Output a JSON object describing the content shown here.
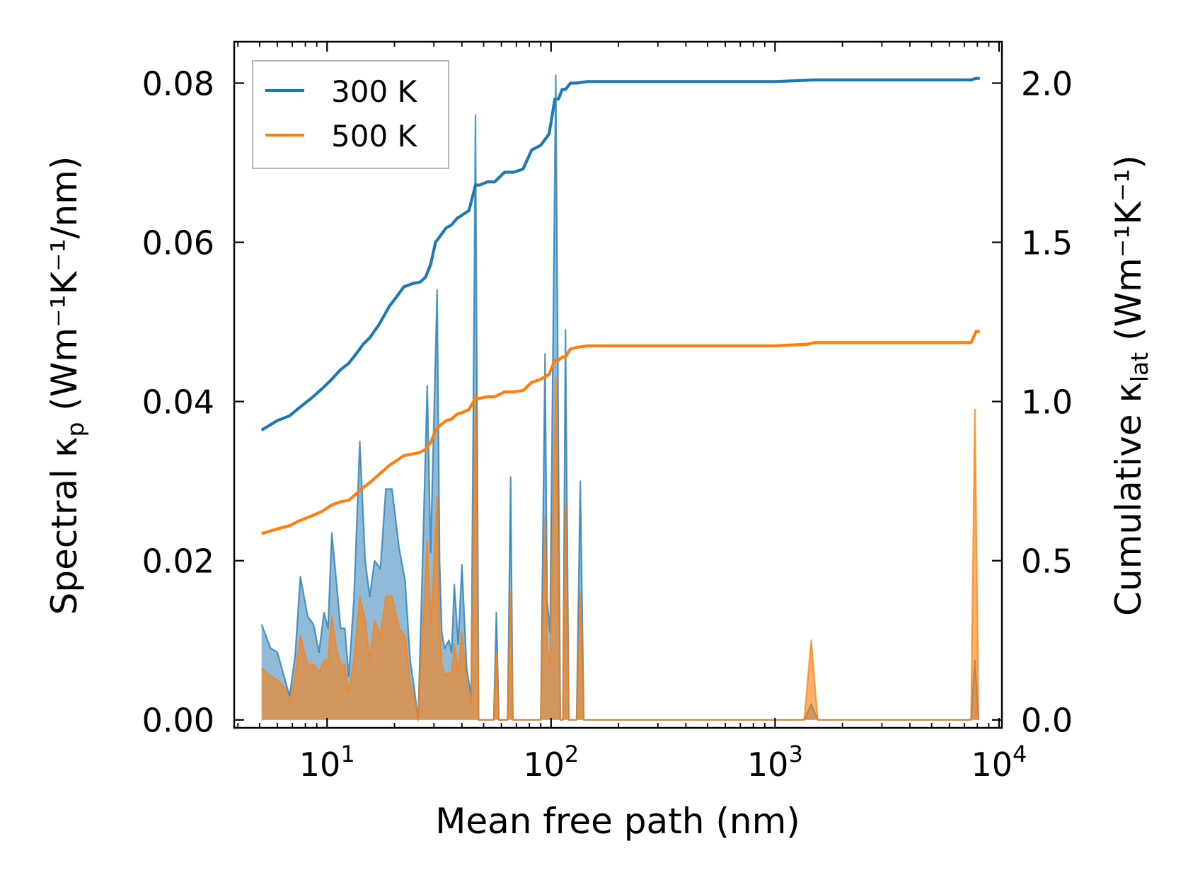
{
  "chart_data": {
    "type": "line",
    "x_scale": "log",
    "xlabel": "Mean free path (nm)",
    "xlim": [
      3.85,
      10300
    ],
    "x_tick_labels": [
      {
        "value": 10,
        "base": "10",
        "exp": "1"
      },
      {
        "value": 100,
        "base": "10",
        "exp": "2"
      },
      {
        "value": 1000,
        "base": "10",
        "exp": "3"
      },
      {
        "value": 10000,
        "base": "10",
        "exp": "4"
      }
    ],
    "left_axis": {
      "label_main": "Spectral κ",
      "label_sub": "p",
      "label_units": " (Wm⁻¹K⁻¹/nm)",
      "ylim": [
        -0.001,
        0.0852
      ],
      "ticks": [
        0.0,
        0.02,
        0.04,
        0.06,
        0.08
      ],
      "tick_labels": [
        "0.00",
        "0.02",
        "0.04",
        "0.06",
        "0.08"
      ]
    },
    "right_axis": {
      "label_main": "Cumulative κ",
      "label_sub": "lat",
      "label_units": " (Wm⁻¹K⁻¹)",
      "ylim": [
        -0.025,
        2.13
      ],
      "ticks": [
        0.0,
        0.5,
        1.0,
        1.5,
        2.0
      ],
      "tick_labels": [
        "0.0",
        "0.5",
        "1.0",
        "1.5",
        "2.0"
      ]
    },
    "legend": {
      "position": "top-left",
      "entries": [
        "300 K",
        "500 K"
      ]
    },
    "colors": {
      "300 K": "#1f77b4",
      "500 K": "#ff7f0e"
    },
    "series": [
      {
        "name": "300 K",
        "cumulative": {
          "x": [
            5.1,
            6.0,
            6.8,
            7.5,
            8.5,
            9.5,
            10.5,
            11.5,
            12.5,
            13.5,
            14.5,
            15.5,
            17.0,
            19.0,
            20.5,
            22.0,
            24.0,
            26.0,
            27.5,
            29.0,
            30.5,
            32.0,
            34.0,
            36.0,
            38.0,
            40.0,
            43.0,
            46.0,
            48.0,
            52.0,
            56.0,
            62.0,
            68.0,
            75.0,
            82.0,
            90.0,
            98.0,
            104.0,
            108.0,
            112.0,
            116.0,
            122.0,
            130.0,
            145.0,
            160.0,
            250.0,
            1000.0,
            1500.0,
            7500.0,
            7900.0,
            8200.0
          ],
          "y": [
            0.91,
            0.94,
            0.955,
            0.98,
            1.01,
            1.04,
            1.07,
            1.1,
            1.12,
            1.15,
            1.18,
            1.2,
            1.24,
            1.3,
            1.33,
            1.36,
            1.37,
            1.375,
            1.39,
            1.43,
            1.5,
            1.52,
            1.545,
            1.555,
            1.575,
            1.585,
            1.6,
            1.68,
            1.68,
            1.69,
            1.69,
            1.72,
            1.72,
            1.73,
            1.79,
            1.805,
            1.84,
            1.95,
            1.95,
            1.98,
            1.98,
            2.0,
            2.0,
            2.005,
            2.005,
            2.005,
            2.005,
            2.01,
            2.01,
            2.015,
            2.015
          ]
        },
        "spectral": {
          "x": [
            5.1,
            5.6,
            6.0,
            6.5,
            6.8,
            7.2,
            7.6,
            8.2,
            8.7,
            9.2,
            9.7,
            10.1,
            10.5,
            11.0,
            11.5,
            12.0,
            12.5,
            13.2,
            14.0,
            14.8,
            15.5,
            16.3,
            17.3,
            18.3,
            19.5,
            21.0,
            22.3,
            23.5,
            24.5,
            25.5,
            26.5,
            28.0,
            29.0,
            30.0,
            31.0,
            31.8,
            32.5,
            33.5,
            35.0,
            36.0,
            37.0,
            38.5,
            40.0,
            42.0,
            44.0,
            46.0,
            47.5,
            48.5,
            49.5,
            51.0,
            53.0,
            55.5,
            57.0,
            58.5,
            61.0,
            64.0,
            66.0,
            67.5,
            68.5,
            70.5,
            74.0,
            80.0,
            86.0,
            90.0,
            94.0,
            96.0,
            99.0,
            105.0,
            110.0,
            113.0,
            116.0,
            120.0,
            124.0,
            127.0,
            130.0,
            135.0,
            140.0,
            145.0,
            150.0,
            155.0,
            300.0,
            800.0,
            1350.0,
            1450.0,
            1550.0,
            3000.0,
            7000.0,
            7500.0,
            7800.0,
            8100.0
          ],
          "y": [
            0.012,
            0.009,
            0.0085,
            0.005,
            0.003,
            0.008,
            0.018,
            0.013,
            0.012,
            0.0085,
            0.0135,
            0.0115,
            0.0235,
            0.0175,
            0.0115,
            0.0115,
            0.0055,
            0.0155,
            0.035,
            0.02,
            0.0155,
            0.02,
            0.019,
            0.029,
            0.029,
            0.0215,
            0.0175,
            0.0075,
            0.004,
            0.0,
            0.0165,
            0.042,
            0.021,
            0.038,
            0.054,
            0.02,
            0.011,
            0.009,
            0.01,
            0.0085,
            0.017,
            0.0095,
            0.0195,
            0.0065,
            0.003,
            0.076,
            0.0,
            0.0,
            0.0,
            0.0,
            0.0,
            0.0,
            0.0135,
            0.0,
            0.0,
            0.0,
            0.0305,
            0.0,
            0.0,
            0.0,
            0.0,
            0.0,
            0.0,
            0.0,
            0.046,
            0.015,
            0.011,
            0.081,
            0.0,
            0.0,
            0.049,
            0.0,
            0.0,
            0.0,
            0.0,
            0.03,
            0.0,
            0.0,
            0.0,
            0.0,
            0.0,
            0.0,
            0.0,
            0.002,
            0.0,
            0.0,
            0.0,
            0.0,
            0.0075,
            0.0
          ]
        }
      },
      {
        "name": "500 K",
        "cumulative": {
          "x": [
            5.1,
            6.0,
            6.8,
            7.5,
            8.5,
            9.5,
            10.5,
            11.5,
            12.5,
            13.5,
            14.5,
            15.5,
            17.0,
            19.0,
            20.5,
            22.0,
            24.0,
            26.0,
            27.5,
            29.0,
            30.5,
            32.0,
            34.0,
            36.0,
            38.0,
            40.0,
            43.0,
            46.0,
            48.0,
            52.0,
            56.0,
            62.0,
            68.0,
            75.0,
            82.0,
            90.0,
            98.0,
            104.0,
            108.0,
            112.0,
            116.0,
            122.0,
            130.0,
            145.0,
            160.0,
            250.0,
            1000.0,
            1400.0,
            1500.0,
            7500.0,
            7900.0,
            8200.0
          ],
          "y": [
            0.585,
            0.6,
            0.61,
            0.625,
            0.64,
            0.655,
            0.675,
            0.685,
            0.69,
            0.71,
            0.73,
            0.745,
            0.77,
            0.8,
            0.815,
            0.83,
            0.835,
            0.84,
            0.85,
            0.87,
            0.91,
            0.925,
            0.94,
            0.945,
            0.96,
            0.965,
            0.975,
            1.01,
            1.01,
            1.015,
            1.015,
            1.03,
            1.03,
            1.035,
            1.06,
            1.07,
            1.085,
            1.13,
            1.13,
            1.14,
            1.14,
            1.165,
            1.17,
            1.175,
            1.175,
            1.175,
            1.175,
            1.18,
            1.185,
            1.185,
            1.22,
            1.22
          ]
        },
        "spectral": {
          "x": [
            5.1,
            5.6,
            6.0,
            6.5,
            6.8,
            7.2,
            7.6,
            8.2,
            8.7,
            9.2,
            9.7,
            10.1,
            10.5,
            11.0,
            11.5,
            12.0,
            12.5,
            13.2,
            14.0,
            14.8,
            15.5,
            16.3,
            17.3,
            18.3,
            19.5,
            21.0,
            22.3,
            23.5,
            24.5,
            25.5,
            26.5,
            28.0,
            29.0,
            30.0,
            31.0,
            31.8,
            32.5,
            33.5,
            35.0,
            36.0,
            37.0,
            38.5,
            40.0,
            42.0,
            44.0,
            46.0,
            47.5,
            48.5,
            49.5,
            51.0,
            53.0,
            55.5,
            57.0,
            58.5,
            61.0,
            64.0,
            66.0,
            67.5,
            68.5,
            70.5,
            74.0,
            80.0,
            86.0,
            90.0,
            94.0,
            96.0,
            99.0,
            105.0,
            110.0,
            113.0,
            116.0,
            120.0,
            124.0,
            127.0,
            130.0,
            135.0,
            140.0,
            145.0,
            150.0,
            155.0,
            300.0,
            800.0,
            1350.0,
            1450.0,
            1550.0,
            3000.0,
            7000.0,
            7500.0,
            7800.0,
            8100.0
          ],
          "y": [
            0.0065,
            0.0055,
            0.005,
            0.004,
            0.002,
            0.0055,
            0.0105,
            0.007,
            0.007,
            0.006,
            0.0075,
            0.0075,
            0.013,
            0.009,
            0.007,
            0.007,
            0.0035,
            0.0075,
            0.0155,
            0.0125,
            0.0075,
            0.0125,
            0.0105,
            0.0155,
            0.0155,
            0.0115,
            0.0105,
            0.0045,
            0.003,
            0.0,
            0.0095,
            0.0225,
            0.012,
            0.0195,
            0.028,
            0.0115,
            0.007,
            0.0055,
            0.006,
            0.0055,
            0.0095,
            0.006,
            0.011,
            0.0045,
            0.002,
            0.041,
            0.0,
            0.0,
            0.0,
            0.0,
            0.0,
            0.0,
            0.0085,
            0.0,
            0.0,
            0.0,
            0.0165,
            0.0,
            0.0,
            0.0,
            0.0,
            0.0,
            0.0,
            0.0,
            0.0255,
            0.009,
            0.007,
            0.043,
            0.0,
            0.0,
            0.027,
            0.0,
            0.0,
            0.0,
            0.0,
            0.016,
            0.0,
            0.0,
            0.0,
            0.0,
            0.0,
            0.0,
            0.0,
            0.01,
            0.0,
            0.0,
            0.0,
            0.0,
            0.039,
            0.0
          ]
        }
      }
    ]
  }
}
